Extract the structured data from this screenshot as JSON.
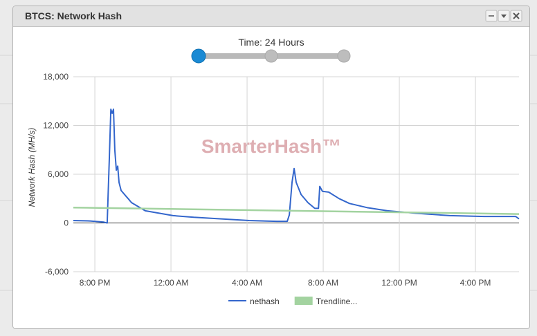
{
  "window": {
    "title": "BTCS: Network Hash"
  },
  "slider": {
    "label": "Time: 24 Hours"
  },
  "chart_data": {
    "type": "line",
    "watermark": "SmarterHash™",
    "y_label": "Network Hash (MH/s)",
    "xlim": [
      18.87,
      42.29
    ],
    "xticks": [
      {
        "value": 20,
        "label": "8:00 PM"
      },
      {
        "value": 24,
        "label": "12:00 AM"
      },
      {
        "value": 28,
        "label": "4:00 AM"
      },
      {
        "value": 32,
        "label": "8:00 AM"
      },
      {
        "value": 36,
        "label": "12:00 PM"
      },
      {
        "value": 40,
        "label": "4:00 PM"
      }
    ],
    "ylim": [
      -6000,
      18000
    ],
    "yticks": [
      {
        "value": 18000,
        "label": "18,000"
      },
      {
        "value": 12000,
        "label": "12,000"
      },
      {
        "value": 6000,
        "label": "6,000"
      },
      0,
      {
        "value": -6000,
        "label": "-6,000"
      }
    ],
    "grid": true,
    "series": [
      {
        "name": "nethash",
        "color": "#3366cc",
        "x": [
          18.87,
          19.75,
          20.47,
          20.65,
          20.76,
          20.84,
          20.91,
          20.98,
          21.05,
          21.13,
          21.2,
          21.27,
          21.38,
          21.56,
          21.75,
          21.93,
          22.29,
          22.65,
          23.38,
          24.11,
          25.2,
          26.65,
          28.11,
          29.56,
          30.11,
          30.22,
          30.36,
          30.47,
          30.58,
          30.84,
          31.2,
          31.56,
          31.75,
          31.82,
          31.96,
          32.29,
          32.84,
          33.38,
          34.29,
          35.38,
          36.84,
          38.65,
          40.47,
          42.11,
          42.29
        ],
        "values": [
          300,
          250,
          100,
          0,
          8000,
          14000,
          13500,
          14000,
          9000,
          6500,
          7000,
          5000,
          4000,
          3500,
          3000,
          2500,
          2000,
          1500,
          1200,
          900,
          700,
          500,
          300,
          200,
          200,
          1000,
          5000,
          6700,
          5000,
          3500,
          2500,
          1800,
          1800,
          4500,
          3900,
          3800,
          3000,
          2400,
          1900,
          1500,
          1200,
          900,
          800,
          800,
          500
        ]
      },
      {
        "name": "Trendline...",
        "color": "#a3d3a0",
        "x": [
          18.87,
          42.29
        ],
        "values": [
          1900,
          1100
        ]
      }
    ]
  }
}
